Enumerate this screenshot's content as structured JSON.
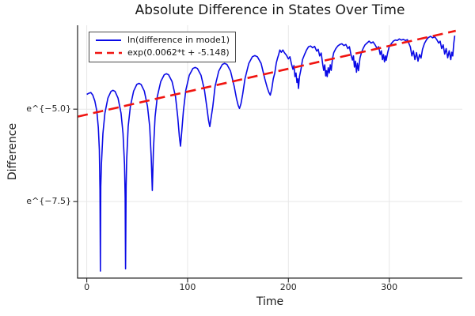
{
  "chart_data": {
    "type": "line",
    "title": "Absolute Difference in States Over Time",
    "xlabel": "Time",
    "ylabel": "Difference",
    "grid": true,
    "legend_position": "top-left",
    "x_axis": {
      "lim": [
        -9.1,
        372.5
      ],
      "ticks": [
        {
          "label": "0",
          "value": 0
        },
        {
          "label": "100",
          "value": 100
        },
        {
          "label": "200",
          "value": 200
        },
        {
          "label": "300",
          "value": 300
        }
      ]
    },
    "y_axis": {
      "note": "log scale; values below are ln(difference)",
      "lim": [
        -9.57,
        -2.73
      ],
      "ticks": [
        {
          "label": "e^{−5.0}",
          "value": -5.0
        },
        {
          "label": "e^{−7.5}",
          "value": -7.5
        }
      ]
    },
    "palette": {
      "background": "#ffffff",
      "axis": "#2f2f2f",
      "grid": "#e7e7e7",
      "title_text": "#191919",
      "tick_text": "#262626",
      "legend_border": "#4a4a4a"
    },
    "series": [
      {
        "name": "ln(difference in mode1)",
        "color": "#0a0ae6",
        "style": "solid",
        "width": 1.6,
        "points": [
          [
            0,
            -4.6
          ],
          [
            2,
            -4.57
          ],
          [
            4,
            -4.55
          ],
          [
            6,
            -4.62
          ],
          [
            8,
            -4.78
          ],
          [
            10,
            -5.05
          ],
          [
            11.5,
            -5.5
          ],
          [
            12.5,
            -6.1
          ],
          [
            13.1,
            -7.2
          ],
          [
            13.5,
            -9.38
          ],
          [
            13.9,
            -7.1
          ],
          [
            14.5,
            -6.5
          ],
          [
            16,
            -5.66
          ],
          [
            18,
            -5.11
          ],
          [
            21,
            -4.7
          ],
          [
            24,
            -4.52
          ],
          [
            26,
            -4.49
          ],
          [
            28,
            -4.52
          ],
          [
            31,
            -4.7
          ],
          [
            34,
            -5.11
          ],
          [
            36,
            -5.66
          ],
          [
            37.5,
            -6.5
          ],
          [
            38.1,
            -7.4
          ],
          [
            38.5,
            -9.32
          ],
          [
            39,
            -7.1
          ],
          [
            39.6,
            -6.38
          ],
          [
            41.1,
            -5.47
          ],
          [
            43.3,
            -4.92
          ],
          [
            46.5,
            -4.51
          ],
          [
            49.6,
            -4.33
          ],
          [
            51.8,
            -4.3
          ],
          [
            53.9,
            -4.33
          ],
          [
            57.1,
            -4.51
          ],
          [
            60.2,
            -4.92
          ],
          [
            62.4,
            -5.47
          ],
          [
            63.9,
            -6.3
          ],
          [
            65,
            -7.2
          ],
          [
            66.1,
            -6.1
          ],
          [
            67.8,
            -5.21
          ],
          [
            70,
            -4.66
          ],
          [
            73.4,
            -4.25
          ],
          [
            76.8,
            -4.07
          ],
          [
            79,
            -4.04
          ],
          [
            81.2,
            -4.07
          ],
          [
            84.6,
            -4.25
          ],
          [
            88,
            -4.66
          ],
          [
            90.2,
            -5.21
          ],
          [
            91.9,
            -5.75
          ],
          [
            93,
            -6
          ],
          [
            94.2,
            -5.6
          ],
          [
            95.9,
            -5.04
          ],
          [
            98.2,
            -4.49
          ],
          [
            101.7,
            -4.08
          ],
          [
            105.2,
            -3.9
          ],
          [
            107.5,
            -3.87
          ],
          [
            109.8,
            -3.9
          ],
          [
            113.3,
            -4.08
          ],
          [
            116.8,
            -4.49
          ],
          [
            119.1,
            -4.95
          ],
          [
            120.8,
            -5.3
          ],
          [
            122,
            -5.47
          ],
          [
            123.5,
            -5.2
          ],
          [
            125,
            -4.93
          ],
          [
            127.3,
            -4.38
          ],
          [
            130.9,
            -3.97
          ],
          [
            134.4,
            -3.79
          ],
          [
            136.7,
            -3.76
          ],
          [
            139.1,
            -3.79
          ],
          [
            142.6,
            -3.97
          ],
          [
            146.2,
            -4.38
          ],
          [
            148.6,
            -4.72
          ],
          [
            150.2,
            -4.9
          ],
          [
            151.5,
            -4.98
          ],
          [
            153,
            -4.85
          ],
          [
            154.6,
            -4.6
          ],
          [
            157,
            -4.17
          ],
          [
            160.7,
            -3.76
          ],
          [
            164.3,
            -3.58
          ],
          [
            166.7,
            -3.55
          ],
          [
            169.2,
            -3.58
          ],
          [
            172.9,
            -3.76
          ],
          [
            176.5,
            -4.17
          ],
          [
            179,
            -4.42
          ],
          [
            180.7,
            -4.55
          ],
          [
            182,
            -4.62
          ],
          [
            183.5,
            -4.45
          ],
          [
            185,
            -4.18
          ],
          [
            186.5,
            -4.02
          ],
          [
            188,
            -3.75
          ],
          [
            189.2,
            -3.62
          ],
          [
            190.3,
            -3.52
          ],
          [
            191.5,
            -3.4
          ],
          [
            193,
            -3.46
          ],
          [
            194.5,
            -3.4
          ],
          [
            196,
            -3.47
          ],
          [
            198,
            -3.54
          ],
          [
            200,
            -3.64
          ],
          [
            201.5,
            -3.58
          ],
          [
            203,
            -3.77
          ],
          [
            204.5,
            -3.92
          ],
          [
            205.5,
            -3.82
          ],
          [
            206.5,
            -4.12
          ],
          [
            207.5,
            -4.02
          ],
          [
            208.5,
            -4.28
          ],
          [
            209.3,
            -4.18
          ],
          [
            210,
            -4.44
          ],
          [
            211,
            -4.12
          ],
          [
            212.5,
            -3.92
          ],
          [
            214,
            -3.66
          ],
          [
            216,
            -3.52
          ],
          [
            218,
            -3.4
          ],
          [
            220,
            -3.31
          ],
          [
            222,
            -3.29
          ],
          [
            224,
            -3.34
          ],
          [
            226,
            -3.3
          ],
          [
            228,
            -3.43
          ],
          [
            229.5,
            -3.38
          ],
          [
            231,
            -3.56
          ],
          [
            232.5,
            -3.48
          ],
          [
            234,
            -3.78
          ],
          [
            235,
            -3.95
          ],
          [
            236,
            -3.8
          ],
          [
            237,
            -4.1
          ],
          [
            237.8,
            -3.96
          ],
          [
            238.5,
            -4.12
          ],
          [
            239.5,
            -3.88
          ],
          [
            240.5,
            -4.02
          ],
          [
            241.5,
            -3.8
          ],
          [
            242.5,
            -3.95
          ],
          [
            243.8,
            -3.62
          ],
          [
            245,
            -3.47
          ],
          [
            247,
            -3.36
          ],
          [
            249,
            -3.29
          ],
          [
            251,
            -3.25
          ],
          [
            253,
            -3.23
          ],
          [
            255,
            -3.28
          ],
          [
            257,
            -3.25
          ],
          [
            259,
            -3.36
          ],
          [
            260.5,
            -3.31
          ],
          [
            262,
            -3.52
          ],
          [
            263.5,
            -3.67
          ],
          [
            264.5,
            -3.56
          ],
          [
            265.5,
            -3.86
          ],
          [
            266.5,
            -3.7
          ],
          [
            267.5,
            -4
          ],
          [
            268.5,
            -3.76
          ],
          [
            269.5,
            -3.96
          ],
          [
            271,
            -3.62
          ],
          [
            272.5,
            -3.47
          ],
          [
            274,
            -3.36
          ],
          [
            276,
            -3.26
          ],
          [
            278,
            -3.21
          ],
          [
            280,
            -3.16
          ],
          [
            282,
            -3.21
          ],
          [
            284,
            -3.18
          ],
          [
            286,
            -3.26
          ],
          [
            288,
            -3.36
          ],
          [
            289.5,
            -3.31
          ],
          [
            291,
            -3.52
          ],
          [
            292.2,
            -3.42
          ],
          [
            293.3,
            -3.66
          ],
          [
            294.3,
            -3.52
          ],
          [
            295.3,
            -3.72
          ],
          [
            296.2,
            -3.56
          ],
          [
            297,
            -3.68
          ],
          [
            298.5,
            -3.46
          ],
          [
            300,
            -3.31
          ],
          [
            302,
            -3.23
          ],
          [
            304,
            -3.16
          ],
          [
            306,
            -3.13
          ],
          [
            308,
            -3.14
          ],
          [
            310,
            -3.1
          ],
          [
            312,
            -3.13
          ],
          [
            314,
            -3.11
          ],
          [
            316,
            -3.14
          ],
          [
            318,
            -3.12
          ],
          [
            319.5,
            -3.22
          ],
          [
            321,
            -3.32
          ],
          [
            322.5,
            -3.56
          ],
          [
            324,
            -3.42
          ],
          [
            325.5,
            -3.66
          ],
          [
            327,
            -3.47
          ],
          [
            328.5,
            -3.7
          ],
          [
            330,
            -3.52
          ],
          [
            331.5,
            -3.62
          ],
          [
            333,
            -3.38
          ],
          [
            335,
            -3.22
          ],
          [
            337,
            -3.12
          ],
          [
            339,
            -3.06
          ],
          [
            341,
            -3.03
          ],
          [
            343,
            -3.07
          ],
          [
            345,
            -3.04
          ],
          [
            347,
            -3.11
          ],
          [
            349,
            -3.21
          ],
          [
            350.5,
            -3.16
          ],
          [
            352,
            -3.36
          ],
          [
            353.5,
            -3.26
          ],
          [
            355,
            -3.51
          ],
          [
            356.5,
            -3.36
          ],
          [
            358,
            -3.61
          ],
          [
            359.5,
            -3.42
          ],
          [
            361,
            -3.66
          ],
          [
            362,
            -3.46
          ],
          [
            363,
            -3.56
          ],
          [
            364,
            -3.22
          ],
          [
            365,
            -3.01
          ]
        ]
      },
      {
        "name": "exp(0.0062*t + -5.148)",
        "color": "#f01410",
        "style": "dashed",
        "width": 2.6,
        "slope": 0.0062,
        "intercept": -5.148,
        "points": [
          [
            -9,
            -5.2
          ],
          [
            366,
            -2.88
          ]
        ]
      }
    ]
  }
}
